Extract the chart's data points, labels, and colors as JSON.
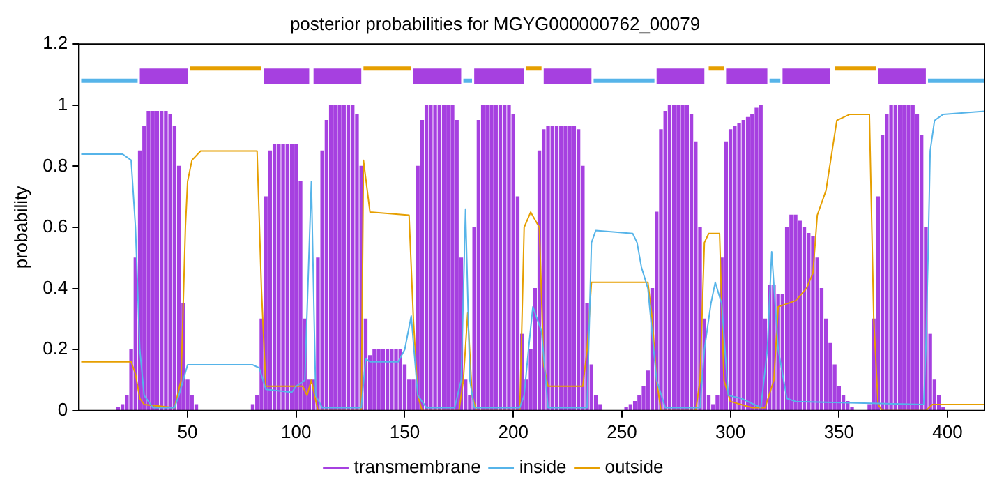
{
  "chart_data": {
    "type": "line",
    "title": "posterior probabilities for MGYG000000762_00079",
    "ylabel": "probability",
    "xlim": [
      0,
      417
    ],
    "xticks": [
      50,
      100,
      150,
      200,
      250,
      300,
      350,
      400
    ],
    "ylim": [
      0,
      1.2
    ],
    "yticks": [
      0,
      0.2,
      0.4,
      0.6,
      0.8,
      1,
      1.2
    ],
    "grid": false,
    "legend": "bottom",
    "marker": "none",
    "series": [
      {
        "name": "transmembrane",
        "type": "bar",
        "color": "#a640e0",
        "x": [
          18,
          20,
          22,
          24,
          26,
          28,
          30,
          32,
          34,
          36,
          38,
          40,
          42,
          44,
          46,
          48,
          50,
          52,
          54,
          80,
          82,
          84,
          86,
          88,
          90,
          92,
          94,
          96,
          98,
          100,
          102,
          104,
          106,
          108,
          110,
          112,
          114,
          116,
          118,
          120,
          122,
          124,
          126,
          128,
          130,
          132,
          134,
          136,
          138,
          140,
          142,
          144,
          146,
          148,
          150,
          152,
          154,
          156,
          158,
          160,
          162,
          164,
          166,
          168,
          170,
          172,
          174,
          176,
          178,
          180,
          182,
          184,
          186,
          188,
          190,
          192,
          194,
          196,
          198,
          200,
          202,
          204,
          206,
          208,
          210,
          212,
          214,
          216,
          218,
          220,
          222,
          224,
          226,
          228,
          230,
          232,
          234,
          236,
          238,
          240,
          252,
          254,
          256,
          258,
          260,
          262,
          264,
          266,
          268,
          270,
          272,
          274,
          276,
          278,
          280,
          282,
          284,
          286,
          288,
          290,
          292,
          294,
          296,
          298,
          300,
          302,
          304,
          306,
          308,
          310,
          312,
          314,
          316,
          318,
          320,
          322,
          324,
          326,
          328,
          330,
          332,
          334,
          336,
          338,
          340,
          342,
          344,
          346,
          348,
          350,
          352,
          354,
          356,
          364,
          366,
          368,
          370,
          372,
          374,
          376,
          378,
          380,
          382,
          384,
          386,
          388,
          390,
          392,
          394,
          396,
          398
        ],
        "values": [
          0.01,
          0.02,
          0.05,
          0.2,
          0.5,
          0.85,
          0.93,
          0.98,
          0.98,
          0.98,
          0.98,
          0.98,
          0.97,
          0.93,
          0.8,
          0.35,
          0.1,
          0.05,
          0.02,
          0.02,
          0.05,
          0.3,
          0.7,
          0.85,
          0.87,
          0.87,
          0.87,
          0.87,
          0.87,
          0.87,
          0.75,
          0.3,
          0.1,
          0.1,
          0.5,
          0.85,
          0.95,
          1,
          1,
          1,
          1,
          1,
          1,
          0.97,
          0.8,
          0.3,
          0.18,
          0.2,
          0.2,
          0.2,
          0.2,
          0.2,
          0.2,
          0.2,
          0.15,
          0.1,
          0.1,
          0.8,
          0.95,
          1,
          1,
          1,
          1,
          1,
          1,
          1,
          0.95,
          0.5,
          0.1,
          0.05,
          0.6,
          0.95,
          1,
          1,
          1,
          1,
          1,
          1,
          1,
          0.97,
          0.7,
          0.25,
          0.1,
          0.2,
          0.4,
          0.85,
          0.92,
          0.93,
          0.93,
          0.93,
          0.93,
          0.93,
          0.93,
          0.93,
          0.92,
          0.8,
          0.35,
          0.15,
          0.05,
          0.02,
          0.01,
          0.02,
          0.03,
          0.05,
          0.08,
          0.13,
          0.4,
          0.65,
          0.92,
          0.98,
          1,
          1,
          1,
          1,
          1,
          0.97,
          0.88,
          0.6,
          0.3,
          0.05,
          0.02,
          0.05,
          0.5,
          0.88,
          0.92,
          0.93,
          0.94,
          0.95,
          0.96,
          0.97,
          0.99,
          1,
          0.3,
          0.41,
          0.41,
          0.38,
          0.38,
          0.6,
          0.64,
          0.64,
          0.62,
          0.6,
          0.58,
          0.57,
          0.5,
          0.4,
          0.3,
          0.22,
          0.15,
          0.08,
          0.05,
          0.03,
          0.01,
          0.02,
          0.3,
          0.7,
          0.9,
          0.97,
          1,
          1,
          1,
          1,
          1,
          1,
          0.97,
          0.9,
          0.6,
          0.25,
          0.1,
          0.05,
          0.01
        ]
      },
      {
        "name": "inside",
        "color": "#56b4e9",
        "x": [
          1,
          20,
          24,
          26,
          28,
          30,
          34,
          44,
          46,
          48,
          50,
          52,
          80,
          83,
          86,
          98,
          100,
          104,
          107,
          109,
          112,
          130,
          132,
          134,
          147,
          150,
          153,
          156,
          160,
          173,
          176,
          178,
          180,
          182,
          203,
          205,
          207,
          209,
          211,
          213,
          216,
          234,
          236,
          238,
          255,
          257,
          259,
          262,
          264,
          266,
          270,
          286,
          288,
          291,
          293,
          296,
          299,
          305,
          314,
          317,
          319,
          322,
          326,
          330,
          389,
          390,
          391,
          392,
          394,
          398,
          417
        ],
        "values": [
          0.84,
          0.84,
          0.82,
          0.6,
          0.2,
          0.05,
          0.01,
          0.01,
          0.05,
          0.1,
          0.15,
          0.15,
          0.15,
          0.14,
          0.07,
          0.06,
          0.08,
          0.1,
          0.75,
          0.05,
          0.01,
          0.01,
          0.17,
          0.16,
          0.16,
          0.2,
          0.31,
          0.05,
          0.01,
          0.01,
          0.1,
          0.66,
          0.1,
          0.01,
          0.01,
          0.05,
          0.2,
          0.34,
          0.3,
          0.26,
          0.01,
          0.01,
          0.55,
          0.59,
          0.58,
          0.55,
          0.47,
          0.4,
          0.25,
          0.1,
          0.01,
          0.01,
          0.2,
          0.35,
          0.42,
          0.35,
          0.05,
          0.04,
          0.01,
          0.2,
          0.52,
          0.2,
          0.04,
          0.03,
          0.02,
          0.2,
          0.5,
          0.85,
          0.95,
          0.97,
          0.98
        ]
      },
      {
        "name": "outside",
        "color": "#e69f00",
        "x": [
          1,
          24,
          26,
          28,
          30,
          44,
          47,
          49,
          50,
          52,
          56,
          82,
          84,
          86,
          88,
          103,
          105,
          107,
          110,
          130,
          131,
          134,
          152,
          154,
          156,
          158,
          175,
          177,
          179,
          181,
          183,
          203,
          205,
          208,
          212,
          214,
          216,
          232,
          234,
          236,
          262,
          264,
          266,
          268,
          284,
          286,
          288,
          290,
          295,
          297,
          300,
          310,
          316,
          320,
          322,
          330,
          335,
          338,
          340,
          344,
          349,
          355,
          364,
          366,
          368,
          370,
          390,
          393,
          417
        ],
        "values": [
          0.16,
          0.16,
          0.12,
          0.04,
          0.02,
          0.01,
          0.1,
          0.6,
          0.75,
          0.82,
          0.85,
          0.85,
          0.4,
          0.08,
          0.08,
          0.08,
          0.05,
          0.1,
          0.0,
          0.0,
          0.82,
          0.65,
          0.64,
          0.3,
          0.05,
          0.0,
          0.0,
          0.1,
          0.32,
          0.05,
          0.0,
          0.0,
          0.6,
          0.65,
          0.6,
          0.15,
          0.08,
          0.08,
          0.2,
          0.42,
          0.42,
          0.3,
          0.1,
          0.0,
          0.0,
          0.1,
          0.55,
          0.58,
          0.58,
          0.1,
          0.03,
          0.01,
          0.01,
          0.1,
          0.34,
          0.36,
          0.4,
          0.45,
          0.64,
          0.72,
          0.95,
          0.97,
          0.97,
          0.3,
          0.02,
          0.0,
          0.0,
          0.02,
          0.02
        ]
      },
      {
        "color": "#56b4e9",
        "x": [
          1,
          27,
          28,
          177,
          181,
          182,
          237,
          265,
          266,
          318,
          323,
          324,
          391,
          417
        ],
        "values": [
          1.08,
          1.08,
          null,
          1.08,
          1.08,
          null,
          1.08,
          1.08,
          null,
          1.08,
          1.08,
          null,
          1.08,
          1.08
        ]
      },
      {
        "color": "#e69f00",
        "x": [
          51,
          84,
          85,
          131,
          153,
          154,
          206,
          213,
          214,
          290,
          297,
          298,
          348,
          367
        ],
        "values": [
          1.12,
          1.12,
          null,
          1.12,
          1.12,
          null,
          1.12,
          1.12,
          null,
          1.12,
          1.12,
          null,
          1.12,
          1.12
        ]
      },
      {
        "color": "#a640e0",
        "x": [
          28,
          50,
          51,
          85,
          106,
          107,
          108,
          130,
          131,
          154,
          176,
          177,
          182,
          205,
          206,
          214,
          236,
          237,
          266,
          288,
          289,
          298,
          317,
          318,
          324,
          346,
          347,
          368,
          390
        ],
        "values": [
          1.095,
          1.095,
          null,
          1.095,
          1.095,
          null,
          1.095,
          1.095,
          null,
          1.095,
          1.095,
          null,
          1.095,
          1.095,
          null,
          1.095,
          1.095,
          null,
          1.095,
          1.095,
          null,
          1.095,
          1.095,
          null,
          1.095,
          1.095,
          null,
          1.095,
          1.095
        ]
      }
    ]
  }
}
